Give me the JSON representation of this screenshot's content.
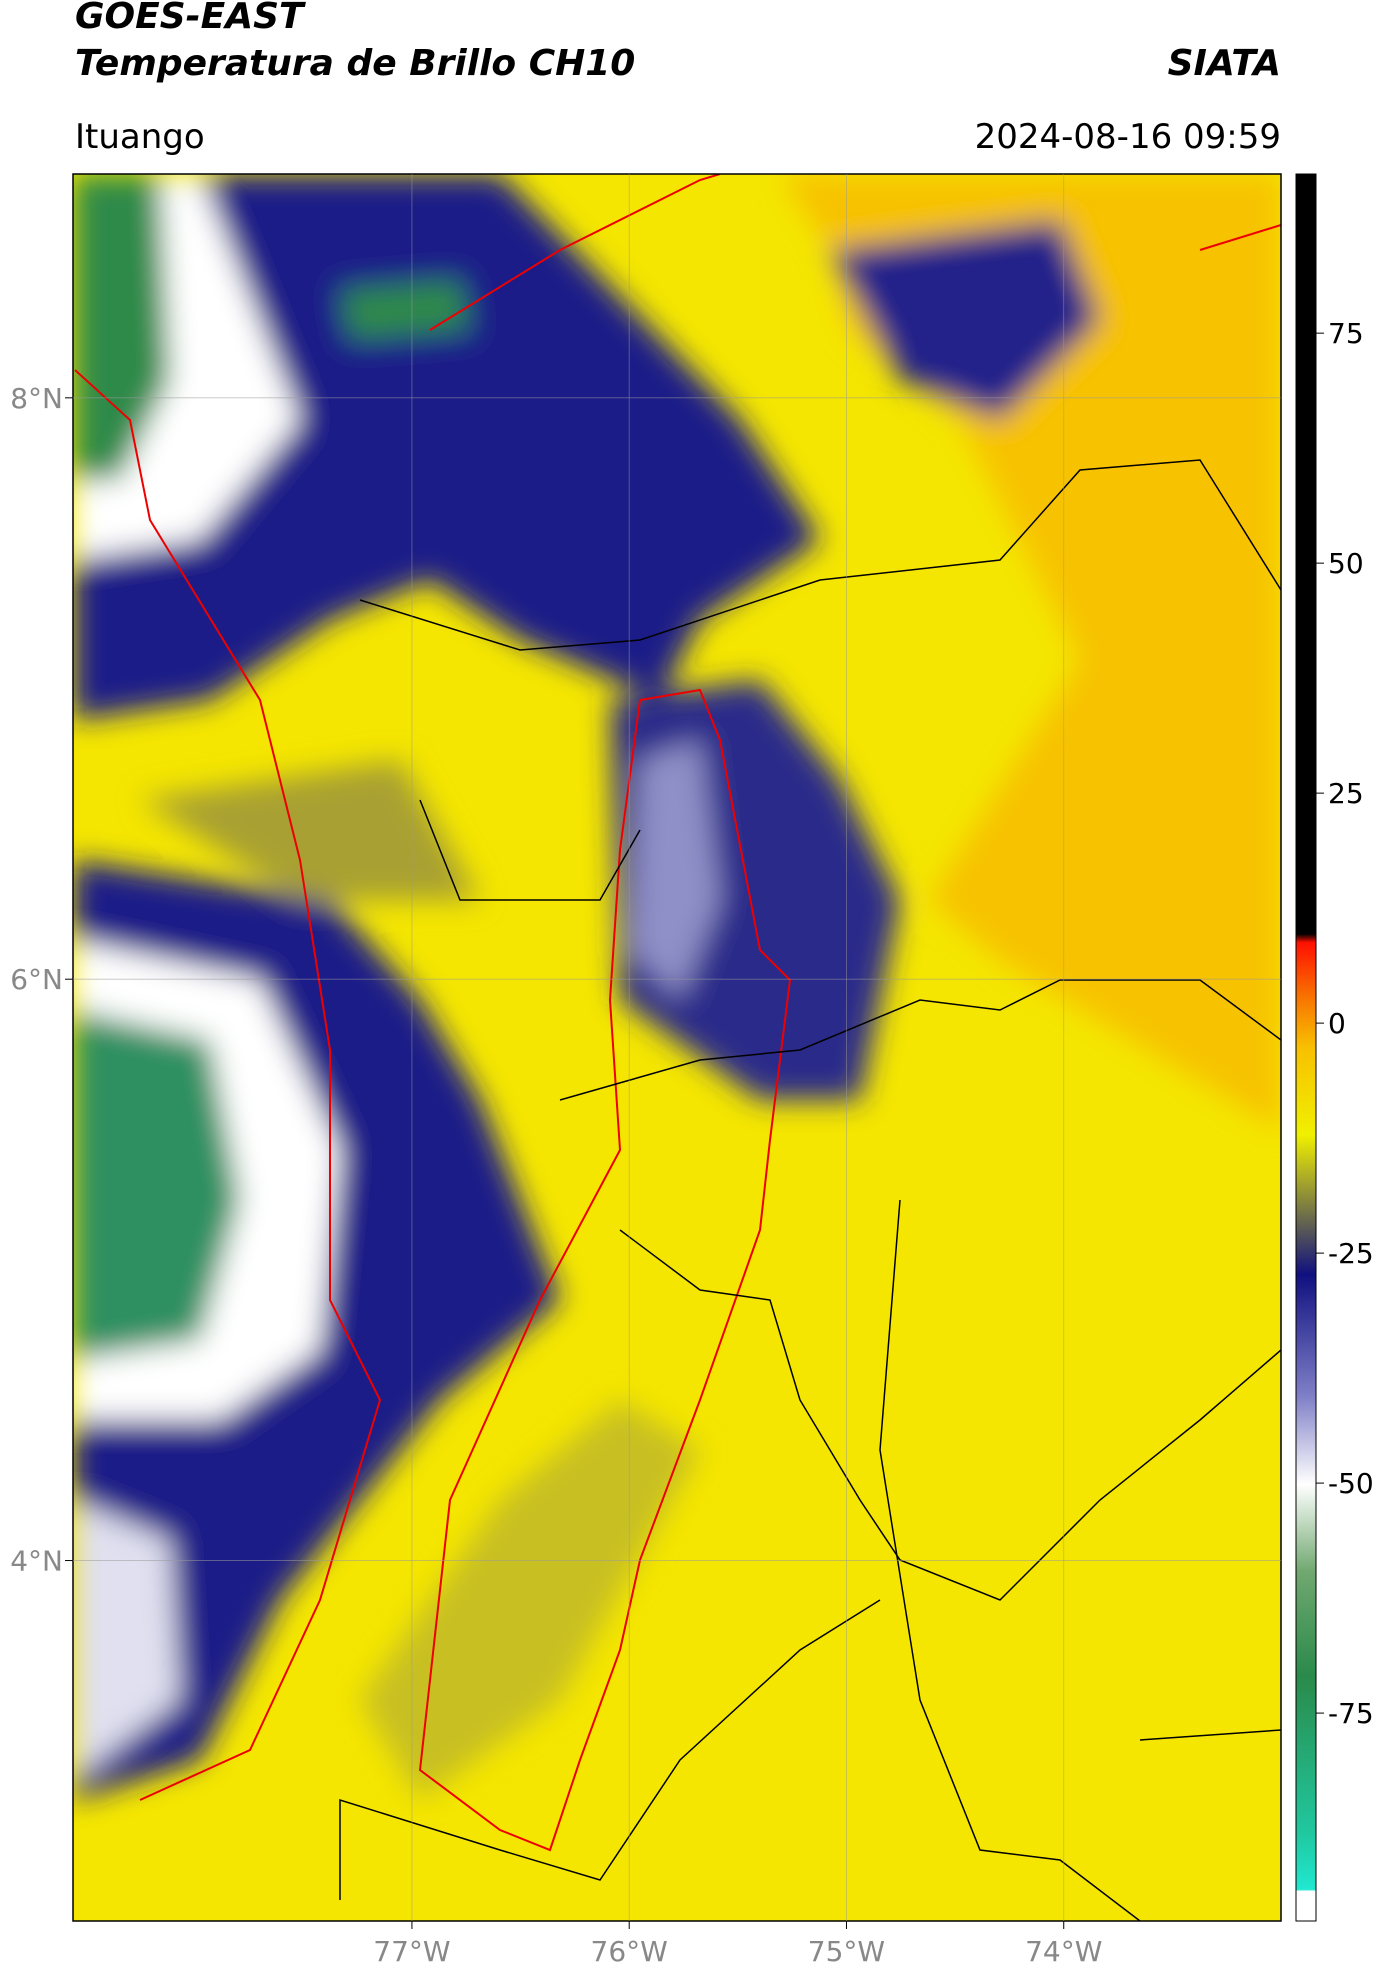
{
  "header": {
    "title": "GOES-EAST",
    "subtitle": "Temperatura de Brillo CH10",
    "source": "SIATA",
    "location": "Ituango",
    "datetime": "2024-08-16 09:59"
  },
  "map": {
    "xlim": [
      -78.56,
      -73.0
    ],
    "ylim": [
      2.76,
      8.77
    ],
    "xticks": [
      {
        "value": -77,
        "label": "77°W"
      },
      {
        "value": -76,
        "label": "76°W"
      },
      {
        "value": -75,
        "label": "75°W"
      },
      {
        "value": -74,
        "label": "74°W"
      }
    ],
    "yticks": [
      {
        "value": 4,
        "label": "4°N"
      },
      {
        "value": 6,
        "label": "6°N"
      },
      {
        "value": 8,
        "label": "8°N"
      }
    ],
    "grid": true
  },
  "colorbar": {
    "clim": [
      -97.6,
      92.3
    ],
    "ticks": [
      -75,
      -50,
      -25,
      0,
      25,
      50,
      75
    ]
  }
}
